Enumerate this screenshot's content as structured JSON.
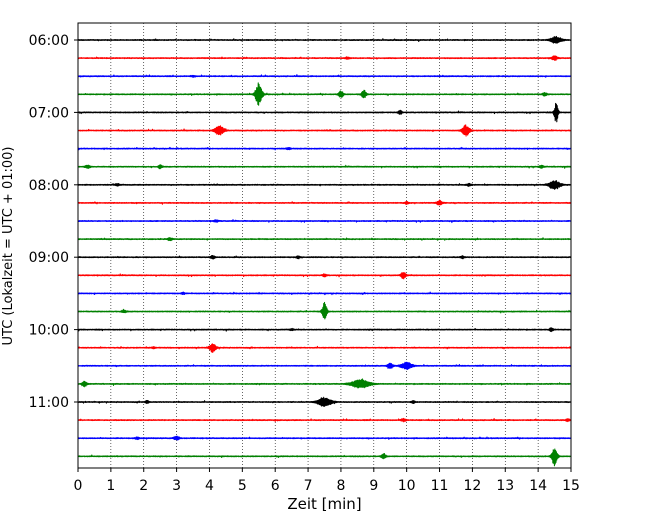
{
  "chart_data": {
    "type": "line",
    "title": "",
    "xlabel": "Zeit  [min]",
    "ylabel": "UTC (Lokalzeit = UTC + 01:00)",
    "xlim": [
      0,
      15
    ],
    "x_ticks": [
      0,
      1,
      2,
      3,
      4,
      5,
      6,
      7,
      8,
      9,
      10,
      11,
      12,
      13,
      14,
      15
    ],
    "y_tick_labels": [
      "06:00",
      "07:00",
      "08:00",
      "09:00",
      "10:00",
      "11:00"
    ],
    "y_tick_rows": [
      0,
      4,
      8,
      12,
      16,
      20
    ],
    "grid": {
      "x": true,
      "y": false,
      "style": "dotted"
    },
    "color_cycle": [
      "#000000",
      "#ff0000",
      "#0000ff",
      "#008000"
    ],
    "noise_amplitude": 0.025,
    "rows": [
      {
        "time": "06:00",
        "color": "#000000",
        "events": [
          {
            "t": 14.55,
            "a": 0.22,
            "w": 0.12
          }
        ]
      },
      {
        "time": "06:15",
        "color": "#ff0000",
        "events": [
          {
            "t": 14.5,
            "a": 0.14,
            "w": 0.06
          },
          {
            "t": 8.2,
            "a": 0.06,
            "w": 0.05
          }
        ]
      },
      {
        "time": "06:30",
        "color": "#0000ff",
        "events": [
          {
            "t": 3.5,
            "a": 0.05,
            "w": 0.05
          }
        ]
      },
      {
        "time": "06:45",
        "color": "#008000",
        "events": [
          {
            "t": 5.5,
            "a": 0.75,
            "w": 0.07
          },
          {
            "t": 8.0,
            "a": 0.22,
            "w": 0.05
          },
          {
            "t": 8.7,
            "a": 0.26,
            "w": 0.05
          },
          {
            "t": 14.2,
            "a": 0.1,
            "w": 0.05
          }
        ]
      },
      {
        "time": "07:00",
        "color": "#000000",
        "events": [
          {
            "t": 14.55,
            "a": 0.7,
            "w": 0.04
          },
          {
            "t": 9.8,
            "a": 0.15,
            "w": 0.04
          }
        ]
      },
      {
        "time": "07:15",
        "color": "#ff0000",
        "events": [
          {
            "t": 4.3,
            "a": 0.3,
            "w": 0.1
          },
          {
            "t": 11.8,
            "a": 0.36,
            "w": 0.08
          }
        ]
      },
      {
        "time": "07:30",
        "color": "#0000ff",
        "events": [
          {
            "t": 6.4,
            "a": 0.06,
            "w": 0.05
          }
        ]
      },
      {
        "time": "07:45",
        "color": "#008000",
        "events": [
          {
            "t": 0.3,
            "a": 0.1,
            "w": 0.06
          },
          {
            "t": 2.5,
            "a": 0.12,
            "w": 0.04
          },
          {
            "t": 14.1,
            "a": 0.08,
            "w": 0.05
          }
        ]
      },
      {
        "time": "08:00",
        "color": "#000000",
        "events": [
          {
            "t": 14.5,
            "a": 0.28,
            "w": 0.12
          },
          {
            "t": 1.2,
            "a": 0.08,
            "w": 0.05
          },
          {
            "t": 11.9,
            "a": 0.08,
            "w": 0.05
          }
        ]
      },
      {
        "time": "08:15",
        "color": "#ff0000",
        "events": [
          {
            "t": 11.0,
            "a": 0.16,
            "w": 0.06
          },
          {
            "t": 10.0,
            "a": 0.08,
            "w": 0.04
          }
        ]
      },
      {
        "time": "08:30",
        "color": "#0000ff",
        "events": [
          {
            "t": 4.2,
            "a": 0.06,
            "w": 0.05
          }
        ]
      },
      {
        "time": "08:45",
        "color": "#008000",
        "events": [
          {
            "t": 2.8,
            "a": 0.1,
            "w": 0.05
          }
        ]
      },
      {
        "time": "09:00",
        "color": "#000000",
        "events": [
          {
            "t": 4.1,
            "a": 0.1,
            "w": 0.05
          },
          {
            "t": 6.7,
            "a": 0.08,
            "w": 0.04
          },
          {
            "t": 11.7,
            "a": 0.08,
            "w": 0.04
          }
        ]
      },
      {
        "time": "09:15",
        "color": "#ff0000",
        "events": [
          {
            "t": 9.9,
            "a": 0.24,
            "w": 0.05
          },
          {
            "t": 7.5,
            "a": 0.1,
            "w": 0.04
          }
        ]
      },
      {
        "time": "09:30",
        "color": "#0000ff",
        "events": [
          {
            "t": 3.2,
            "a": 0.06,
            "w": 0.04
          }
        ]
      },
      {
        "time": "09:45",
        "color": "#008000",
        "events": [
          {
            "t": 7.5,
            "a": 0.6,
            "w": 0.05
          },
          {
            "t": 1.4,
            "a": 0.08,
            "w": 0.05
          }
        ]
      },
      {
        "time": "10:00",
        "color": "#000000",
        "events": [
          {
            "t": 14.4,
            "a": 0.12,
            "w": 0.04
          },
          {
            "t": 6.5,
            "a": 0.06,
            "w": 0.04
          }
        ]
      },
      {
        "time": "10:15",
        "color": "#ff0000",
        "events": [
          {
            "t": 4.1,
            "a": 0.28,
            "w": 0.07
          },
          {
            "t": 2.3,
            "a": 0.06,
            "w": 0.04
          }
        ]
      },
      {
        "time": "10:30",
        "color": "#0000ff",
        "events": [
          {
            "t": 10.0,
            "a": 0.22,
            "w": 0.12
          },
          {
            "t": 9.5,
            "a": 0.16,
            "w": 0.06
          }
        ]
      },
      {
        "time": "10:45",
        "color": "#008000",
        "events": [
          {
            "t": 8.6,
            "a": 0.28,
            "w": 0.2
          },
          {
            "t": 0.2,
            "a": 0.18,
            "w": 0.05
          }
        ]
      },
      {
        "time": "11:00",
        "color": "#000000",
        "events": [
          {
            "t": 7.5,
            "a": 0.3,
            "w": 0.15
          },
          {
            "t": 2.1,
            "a": 0.1,
            "w": 0.04
          },
          {
            "t": 10.2,
            "a": 0.08,
            "w": 0.04
          }
        ]
      },
      {
        "time": "11:15",
        "color": "#ff0000",
        "events": [
          {
            "t": 9.9,
            "a": 0.1,
            "w": 0.05
          },
          {
            "t": 14.9,
            "a": 0.08,
            "w": 0.04
          }
        ]
      },
      {
        "time": "11:30",
        "color": "#0000ff",
        "events": [
          {
            "t": 3.0,
            "a": 0.12,
            "w": 0.06
          },
          {
            "t": 1.8,
            "a": 0.08,
            "w": 0.04
          }
        ]
      },
      {
        "time": "11:45",
        "color": "#008000",
        "events": [
          {
            "t": 14.5,
            "a": 0.62,
            "w": 0.06
          },
          {
            "t": 9.3,
            "a": 0.16,
            "w": 0.05
          }
        ]
      }
    ]
  }
}
